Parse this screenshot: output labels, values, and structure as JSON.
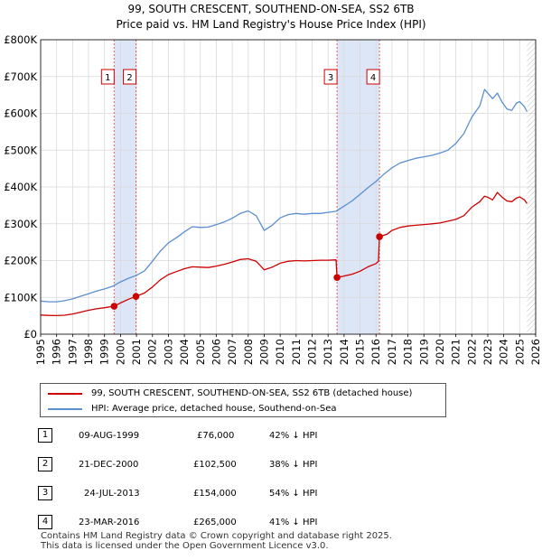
{
  "chart_data": {
    "type": "line",
    "title": "99, SOUTH CRESCENT, SOUTHEND-ON-SEA, SS2 6TB",
    "subtitle": "Price paid vs. HM Land Registry's House Price Index (HPI)",
    "xlim": [
      1995,
      2026
    ],
    "ylim": [
      0,
      800000
    ],
    "x_ticks": [
      "1995",
      "1996",
      "1997",
      "1998",
      "1999",
      "2000",
      "2001",
      "2002",
      "2003",
      "2004",
      "2005",
      "2006",
      "2007",
      "2008",
      "2009",
      "2010",
      "2011",
      "2012",
      "2013",
      "2014",
      "2015",
      "2016",
      "2017",
      "2018",
      "2019",
      "2020",
      "2021",
      "2022",
      "2023",
      "2024",
      "2025",
      "2026"
    ],
    "y_ticks": [
      {
        "value": 0,
        "label": "£0"
      },
      {
        "value": 100000,
        "label": "£100K"
      },
      {
        "value": 200000,
        "label": "£200K"
      },
      {
        "value": 300000,
        "label": "£300K"
      },
      {
        "value": 400000,
        "label": "£400K"
      },
      {
        "value": 500000,
        "label": "£500K"
      },
      {
        "value": 600000,
        "label": "£600K"
      },
      {
        "value": 700000,
        "label": "£700K"
      },
      {
        "value": 800000,
        "label": "£800K"
      }
    ],
    "grid": true,
    "series": [
      {
        "name": "99, SOUTH CRESCENT, SOUTHEND-ON-SEA, SS2 6TB (detached house)",
        "color": "#cc0000",
        "points": [
          [
            1995.0,
            52000
          ],
          [
            1995.5,
            51000
          ],
          [
            1996.0,
            50500
          ],
          [
            1996.5,
            51500
          ],
          [
            1997.0,
            55000
          ],
          [
            1997.5,
            60000
          ],
          [
            1998.0,
            65000
          ],
          [
            1998.5,
            69000
          ],
          [
            1999.0,
            72000
          ],
          [
            1999.6,
            76000
          ],
          [
            2000.0,
            85000
          ],
          [
            2000.5,
            95000
          ],
          [
            2000.97,
            102500
          ],
          [
            2001.5,
            112000
          ],
          [
            2002.0,
            128000
          ],
          [
            2002.5,
            148000
          ],
          [
            2003.0,
            162000
          ],
          [
            2003.5,
            170000
          ],
          [
            2004.0,
            178000
          ],
          [
            2004.5,
            183000
          ],
          [
            2005.0,
            182000
          ],
          [
            2005.5,
            181000
          ],
          [
            2006.0,
            185000
          ],
          [
            2006.5,
            190000
          ],
          [
            2007.0,
            196000
          ],
          [
            2007.5,
            203000
          ],
          [
            2008.0,
            205000
          ],
          [
            2008.5,
            198000
          ],
          [
            2009.0,
            175000
          ],
          [
            2009.5,
            182000
          ],
          [
            2010.0,
            193000
          ],
          [
            2010.5,
            198000
          ],
          [
            2011.0,
            200000
          ],
          [
            2011.5,
            199000
          ],
          [
            2012.0,
            200000
          ],
          [
            2012.5,
            201000
          ],
          [
            2013.0,
            201000
          ],
          [
            2013.5,
            202000
          ],
          [
            2013.56,
            154000
          ],
          [
            2014.0,
            158000
          ],
          [
            2014.5,
            163000
          ],
          [
            2015.0,
            171000
          ],
          [
            2015.5,
            183000
          ],
          [
            2016.0,
            192000
          ],
          [
            2016.15,
            198000
          ],
          [
            2016.22,
            265000
          ],
          [
            2016.7,
            272000
          ],
          [
            2017.0,
            282000
          ],
          [
            2017.5,
            290000
          ],
          [
            2018.0,
            294000
          ],
          [
            2018.5,
            296000
          ],
          [
            2019.0,
            298000
          ],
          [
            2019.5,
            300000
          ],
          [
            2020.0,
            302000
          ],
          [
            2020.5,
            307000
          ],
          [
            2021.0,
            312000
          ],
          [
            2021.5,
            322000
          ],
          [
            2022.0,
            345000
          ],
          [
            2022.5,
            360000
          ],
          [
            2022.8,
            375000
          ],
          [
            2023.0,
            372000
          ],
          [
            2023.3,
            365000
          ],
          [
            2023.6,
            385000
          ],
          [
            2023.9,
            372000
          ],
          [
            2024.2,
            362000
          ],
          [
            2024.5,
            360000
          ],
          [
            2024.8,
            370000
          ],
          [
            2025.0,
            373000
          ],
          [
            2025.3,
            365000
          ],
          [
            2025.45,
            355000
          ]
        ]
      },
      {
        "name": "HPI: Average price, detached house, Southend-on-Sea",
        "color": "#5b8fd0",
        "points": [
          [
            1995.0,
            90000
          ],
          [
            1995.5,
            88000
          ],
          [
            1996.0,
            88000
          ],
          [
            1996.5,
            91000
          ],
          [
            1997.0,
            96000
          ],
          [
            1997.5,
            103000
          ],
          [
            1998.0,
            110000
          ],
          [
            1998.5,
            117000
          ],
          [
            1999.0,
            123000
          ],
          [
            1999.5,
            130000
          ],
          [
            2000.0,
            142000
          ],
          [
            2000.5,
            152000
          ],
          [
            2001.0,
            160000
          ],
          [
            2001.5,
            172000
          ],
          [
            2002.0,
            198000
          ],
          [
            2002.5,
            226000
          ],
          [
            2003.0,
            248000
          ],
          [
            2003.5,
            262000
          ],
          [
            2004.0,
            278000
          ],
          [
            2004.5,
            292000
          ],
          [
            2005.0,
            290000
          ],
          [
            2005.5,
            291000
          ],
          [
            2006.0,
            298000
          ],
          [
            2006.5,
            305000
          ],
          [
            2007.0,
            315000
          ],
          [
            2007.5,
            328000
          ],
          [
            2008.0,
            335000
          ],
          [
            2008.5,
            322000
          ],
          [
            2009.0,
            282000
          ],
          [
            2009.5,
            296000
          ],
          [
            2010.0,
            316000
          ],
          [
            2010.5,
            325000
          ],
          [
            2011.0,
            328000
          ],
          [
            2011.5,
            326000
          ],
          [
            2012.0,
            328000
          ],
          [
            2012.5,
            328000
          ],
          [
            2013.0,
            331000
          ],
          [
            2013.5,
            334000
          ],
          [
            2014.0,
            348000
          ],
          [
            2014.5,
            362000
          ],
          [
            2015.0,
            380000
          ],
          [
            2015.5,
            398000
          ],
          [
            2016.0,
            415000
          ],
          [
            2016.5,
            435000
          ],
          [
            2017.0,
            452000
          ],
          [
            2017.5,
            465000
          ],
          [
            2018.0,
            472000
          ],
          [
            2018.5,
            478000
          ],
          [
            2019.0,
            482000
          ],
          [
            2019.5,
            486000
          ],
          [
            2020.0,
            492000
          ],
          [
            2020.5,
            500000
          ],
          [
            2021.0,
            518000
          ],
          [
            2021.5,
            545000
          ],
          [
            2022.0,
            590000
          ],
          [
            2022.5,
            620000
          ],
          [
            2022.8,
            665000
          ],
          [
            2023.0,
            655000
          ],
          [
            2023.3,
            640000
          ],
          [
            2023.6,
            655000
          ],
          [
            2023.9,
            630000
          ],
          [
            2024.2,
            612000
          ],
          [
            2024.5,
            608000
          ],
          [
            2024.8,
            628000
          ],
          [
            2025.0,
            632000
          ],
          [
            2025.3,
            618000
          ],
          [
            2025.45,
            605000
          ]
        ]
      }
    ],
    "sales": [
      {
        "num": "1",
        "x": 1999.6,
        "price": 76000,
        "date": "09-AUG-1999",
        "price_label": "£76,000",
        "hpi": "42% ↓ HPI"
      },
      {
        "num": "2",
        "x": 2000.97,
        "price": 102500,
        "date": "21-DEC-2000",
        "price_label": "£102,500",
        "hpi": "38% ↓ HPI"
      },
      {
        "num": "3",
        "x": 2013.56,
        "price": 154000,
        "date": "24-JUL-2013",
        "price_label": "£154,000",
        "hpi": "54% ↓ HPI"
      },
      {
        "num": "4",
        "x": 2016.22,
        "price": 265000,
        "date": "23-MAR-2016",
        "price_label": "£265,000",
        "hpi": "41% ↓ HPI"
      }
    ],
    "shaded_spans": [
      [
        1999.6,
        2000.97
      ],
      [
        2013.56,
        2016.22
      ]
    ],
    "forecast_start": 2025.45,
    "colors": {
      "grid": "#d9d9d9",
      "span_fill": "#dde6f6",
      "sale_line": "#e06060",
      "forecast_hatch": "#999999"
    }
  },
  "legend": {
    "items": [
      {
        "label": "99, SOUTH CRESCENT, SOUTHEND-ON-SEA, SS2 6TB (detached house)",
        "color": "#cc0000"
      },
      {
        "label": "HPI: Average price, detached house, Southend-on-Sea",
        "color": "#5b8fd0"
      }
    ]
  },
  "footer": {
    "line1": "Contains HM Land Registry data © Crown copyright and database right 2025.",
    "line2": "This data is licensed under the Open Government Licence v3.0."
  }
}
